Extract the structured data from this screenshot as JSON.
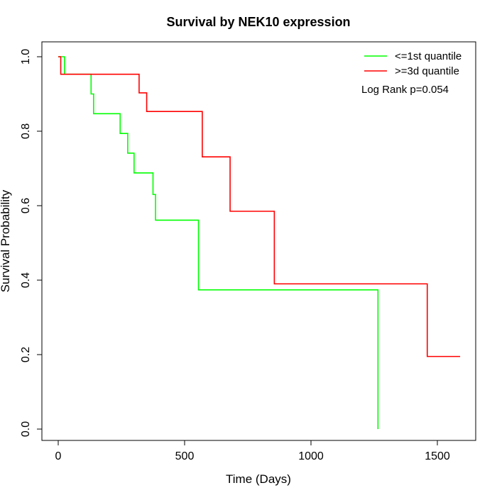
{
  "chart_data": {
    "type": "line",
    "title": "Survival by NEK10 expression",
    "xlabel": "Time (Days)",
    "ylabel": "Survival Probability",
    "xlim": [
      0,
      1600
    ],
    "ylim": [
      0,
      1
    ],
    "x_ticks": [
      0,
      500,
      1000,
      1500
    ],
    "x_tick_labels": [
      "0",
      "500",
      "1000",
      "1500"
    ],
    "y_ticks": [
      0,
      0.2,
      0.4,
      0.6,
      0.8,
      1
    ],
    "y_tick_labels": [
      "0.0",
      "0.2",
      "0.4",
      "0.6",
      "0.8",
      "1.0"
    ],
    "grid": false,
    "legend_position": "top-right",
    "annotation": "Log Rank p=0.054",
    "series": [
      {
        "name": "<=1st quantile",
        "color": "#00ff00",
        "steps": [
          [
            0,
            1.0
          ],
          [
            25,
            0.953
          ],
          [
            130,
            0.9
          ],
          [
            140,
            0.847
          ],
          [
            245,
            0.794
          ],
          [
            275,
            0.741
          ],
          [
            300,
            0.688
          ],
          [
            375,
            0.63
          ],
          [
            385,
            0.561
          ],
          [
            555,
            0.374
          ],
          [
            1265,
            0.0
          ]
        ]
      },
      {
        "name": ">=3d quantile",
        "color": "#ff0000",
        "steps": [
          [
            0,
            1.0
          ],
          [
            10,
            0.953
          ],
          [
            320,
            0.903
          ],
          [
            350,
            0.853
          ],
          [
            570,
            0.731
          ],
          [
            680,
            0.585
          ],
          [
            855,
            0.39
          ],
          [
            1460,
            0.195
          ],
          [
            1590,
            0.195
          ]
        ]
      }
    ]
  }
}
